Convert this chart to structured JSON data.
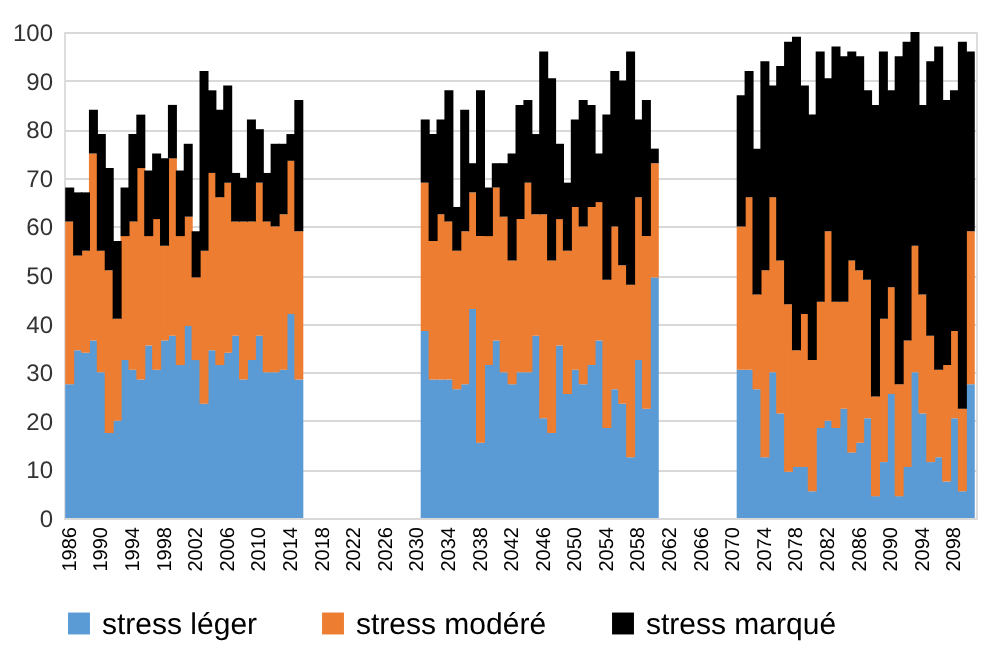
{
  "chart_data": {
    "type": "bar",
    "stacked": true,
    "categories": [
      "1986",
      null,
      null,
      null,
      "1990",
      null,
      null,
      null,
      "1994",
      null,
      null,
      null,
      "1998",
      null,
      null,
      null,
      "2002",
      null,
      null,
      null,
      "2006",
      null,
      null,
      null,
      "2010",
      null,
      null,
      null,
      "2014",
      null,
      null,
      null,
      "2018",
      null,
      null,
      null,
      "2022",
      null,
      null,
      null,
      "2026",
      null,
      null,
      null,
      "2030",
      null,
      null,
      null,
      "2034",
      null,
      null,
      null,
      "2038",
      null,
      null,
      null,
      "2042",
      null,
      null,
      null,
      "2046",
      null,
      null,
      null,
      "2050",
      null,
      null,
      null,
      "2054",
      null,
      null,
      null,
      "2058",
      null,
      null,
      null,
      "2062",
      null,
      null,
      null,
      "2066",
      null,
      null,
      null,
      "2070",
      null,
      null,
      null,
      "2074",
      null,
      null,
      null,
      "2078",
      null,
      null,
      null,
      "2082",
      null,
      null,
      null,
      "2086",
      null,
      null,
      null,
      "2090",
      null,
      null,
      null,
      "2094",
      null,
      null,
      null,
      "2098",
      null,
      null
    ],
    "series": [
      {
        "name": "stress léger",
        "color": "#5b9bd5",
        "values": [
          27.5,
          34.5,
          34,
          36.5,
          30,
          17.5,
          20,
          32.5,
          30.5,
          28.5,
          35.5,
          30.5,
          36.5,
          37.5,
          31.5,
          39.5,
          32.5,
          23.5,
          34.5,
          31.5,
          34,
          37.5,
          28.5,
          32.5,
          37.5,
          30,
          30,
          30.5,
          42,
          28.5,
          null,
          null,
          null,
          null,
          null,
          null,
          null,
          null,
          null,
          null,
          null,
          null,
          null,
          null,
          null,
          38.5,
          28.5,
          28.5,
          28.5,
          26.5,
          27.5,
          43,
          15.5,
          31.5,
          36.5,
          30,
          27.5,
          30,
          30,
          37.5,
          20.5,
          17.5,
          35.5,
          25.5,
          30.5,
          27.5,
          31.5,
          36.5,
          18.5,
          26.5,
          23.5,
          12.5,
          32.5,
          22.5,
          49.5,
          null,
          null,
          null,
          null,
          null,
          null,
          null,
          null,
          null,
          null,
          30.5,
          30.5,
          26.5,
          12.5,
          30,
          21.5,
          9.5,
          10.5,
          10.5,
          5.5,
          18.5,
          20,
          18.5,
          22.5,
          13.5,
          15.5,
          20.5,
          4.5,
          11.5,
          25.5,
          4.5,
          10.5,
          30,
          21.5,
          11.5,
          12.5,
          7.5,
          20.5,
          5.5,
          27.5
        ]
      },
      {
        "name": "stress modéré",
        "color": "#ed7d31",
        "values": [
          33.5,
          19.5,
          21,
          38.5,
          25,
          33.5,
          21,
          25.5,
          30.5,
          43.5,
          22.5,
          31,
          19.5,
          36.5,
          26.5,
          22.5,
          17,
          31.5,
          36.5,
          34.5,
          35,
          23.5,
          32.5,
          28.5,
          31.5,
          31,
          30,
          32,
          31.5,
          30.5,
          null,
          null,
          null,
          null,
          null,
          null,
          null,
          null,
          null,
          null,
          null,
          null,
          null,
          null,
          null,
          30.5,
          28.5,
          34,
          32.5,
          28.5,
          31.5,
          24,
          42.5,
          26.5,
          31.5,
          32,
          25.5,
          31.5,
          39,
          25,
          42,
          35.5,
          26,
          29.5,
          33.5,
          32.5,
          32.5,
          28.5,
          30.5,
          33.5,
          28.5,
          35.5,
          33.5,
          35.5,
          23.5,
          null,
          null,
          null,
          null,
          null,
          null,
          null,
          null,
          null,
          null,
          29.5,
          35.5,
          19.5,
          38.5,
          36,
          31.5,
          34.5,
          24,
          31.5,
          27,
          26,
          39,
          26,
          22,
          39.5,
          35.5,
          28.5,
          20.5,
          29.5,
          22,
          23,
          26,
          26,
          24.5,
          26,
          18,
          24,
          18,
          17,
          31.5
        ]
      },
      {
        "name": "stress marqué",
        "color": "#000000",
        "values": [
          7,
          13,
          12,
          9,
          24,
          21,
          16,
          10,
          18,
          11,
          13.5,
          13.5,
          18,
          11,
          13.5,
          15,
          9.5,
          37,
          17,
          18,
          20,
          10,
          9,
          21,
          11,
          10,
          17,
          14.5,
          5.5,
          27,
          null,
          null,
          null,
          null,
          null,
          null,
          null,
          null,
          null,
          null,
          null,
          null,
          null,
          null,
          null,
          13,
          22,
          19.5,
          27,
          9,
          25,
          6,
          30,
          10,
          5,
          11,
          22,
          23.5,
          17,
          16.5,
          33.5,
          37.5,
          15.5,
          14,
          18,
          26,
          21,
          10,
          34,
          32,
          38,
          48,
          16,
          28,
          3,
          null,
          null,
          null,
          null,
          null,
          null,
          null,
          null,
          null,
          null,
          27,
          26,
          30,
          43,
          23,
          40,
          54,
          64.5,
          47,
          50.5,
          51.5,
          31.5,
          52.5,
          50.5,
          43,
          44,
          39,
          60,
          55,
          40.5,
          67.5,
          61.5,
          44,
          39,
          56.5,
          66.5,
          54.5,
          49.5,
          75.5,
          37
        ]
      }
    ],
    "ylim": [
      0,
      100
    ],
    "yticks": [
      0,
      10,
      20,
      30,
      40,
      50,
      60,
      70,
      80,
      90,
      100
    ],
    "grid": "y",
    "legend": "bottom"
  }
}
